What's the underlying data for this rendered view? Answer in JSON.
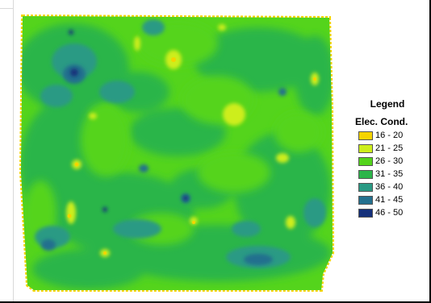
{
  "legend": {
    "title": "Legend",
    "subtitle": "Elec. Cond.",
    "classes": [
      {
        "label": "16 - 20",
        "color": "#f5d400"
      },
      {
        "label": "21 - 25",
        "color": "#cdee1c"
      },
      {
        "label": "26 - 30",
        "color": "#54d41c"
      },
      {
        "label": "31 - 35",
        "color": "#2cb54a"
      },
      {
        "label": "36 - 40",
        "color": "#2a9a84"
      },
      {
        "label": "41 - 45",
        "color": "#24708e"
      },
      {
        "label": "46 - 50",
        "color": "#14307a"
      }
    ]
  }
}
